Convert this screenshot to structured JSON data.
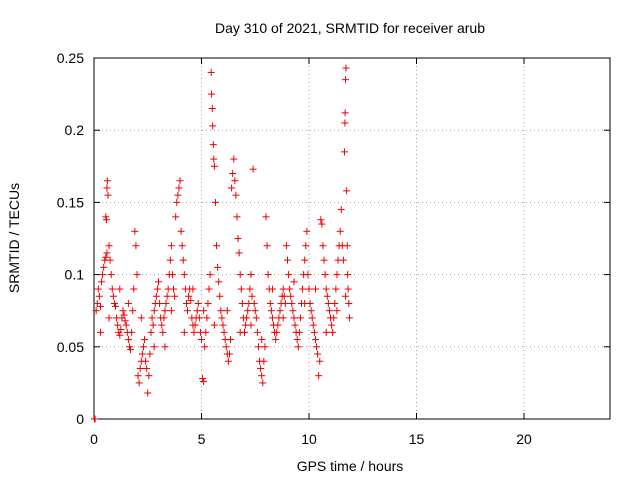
{
  "chart_data": {
    "type": "scatter",
    "title": "Day 310 of 2021, SRMTID for receiver arub",
    "xlabel": "GPS time / hours",
    "ylabel": "SRMTID / TECUs",
    "xlim": [
      0,
      24
    ],
    "ylim": [
      0,
      0.25
    ],
    "xticks": [
      0,
      5,
      10,
      15,
      20
    ],
    "yticks": [
      0,
      0.05,
      0.1,
      0.15,
      0.2,
      0.25
    ],
    "xtick_labels": [
      "0",
      "5",
      "10",
      "15",
      "20"
    ],
    "ytick_labels": [
      "0",
      "0.05",
      "0.1",
      "0.15",
      "0.2",
      "0.25"
    ],
    "grid": true,
    "marker": "+",
    "color": "#ee0000",
    "series": [
      {
        "name": "SRMTID",
        "points": [
          [
            0.02,
            0.0
          ],
          [
            0.05,
            0.0
          ],
          [
            0.1,
            0.075
          ],
          [
            0.15,
            0.08
          ],
          [
            0.2,
            0.09
          ],
          [
            0.25,
            0.085
          ],
          [
            0.3,
            0.078
          ],
          [
            0.35,
            0.095
          ],
          [
            0.4,
            0.1
          ],
          [
            0.45,
            0.105
          ],
          [
            0.5,
            0.11
          ],
          [
            0.55,
            0.112
          ],
          [
            0.6,
            0.115
          ],
          [
            0.6,
            0.16
          ],
          [
            0.62,
            0.165
          ],
          [
            0.65,
            0.155
          ],
          [
            0.55,
            0.14
          ],
          [
            0.58,
            0.138
          ],
          [
            0.7,
            0.12
          ],
          [
            0.75,
            0.11
          ],
          [
            0.8,
            0.1
          ],
          [
            0.85,
            0.09
          ],
          [
            0.9,
            0.085
          ],
          [
            0.95,
            0.08
          ],
          [
            1.0,
            0.078
          ],
          [
            1.05,
            0.07
          ],
          [
            1.1,
            0.065
          ],
          [
            1.15,
            0.06
          ],
          [
            1.2,
            0.058
          ],
          [
            1.25,
            0.062
          ],
          [
            1.3,
            0.07
          ],
          [
            1.35,
            0.075
          ],
          [
            1.4,
            0.072
          ],
          [
            1.45,
            0.068
          ],
          [
            1.5,
            0.065
          ],
          [
            1.55,
            0.06
          ],
          [
            1.6,
            0.055
          ],
          [
            1.65,
            0.05
          ],
          [
            1.7,
            0.048
          ],
          [
            1.75,
            0.06
          ],
          [
            1.8,
            0.075
          ],
          [
            1.85,
            0.09
          ],
          [
            1.9,
            0.13
          ],
          [
            1.95,
            0.12
          ],
          [
            2.0,
            0.1
          ],
          [
            2.05,
            0.03
          ],
          [
            2.1,
            0.025
          ],
          [
            2.15,
            0.035
          ],
          [
            2.2,
            0.04
          ],
          [
            2.25,
            0.045
          ],
          [
            2.3,
            0.05
          ],
          [
            2.35,
            0.055
          ],
          [
            2.4,
            0.04
          ],
          [
            2.45,
            0.035
          ],
          [
            2.5,
            0.018
          ],
          [
            2.55,
            0.03
          ],
          [
            2.6,
            0.045
          ],
          [
            2.65,
            0.06
          ],
          [
            2.7,
            0.07
          ],
          [
            2.75,
            0.065
          ],
          [
            2.8,
            0.075
          ],
          [
            2.85,
            0.08
          ],
          [
            2.9,
            0.085
          ],
          [
            2.95,
            0.09
          ],
          [
            3.0,
            0.095
          ],
          [
            3.05,
            0.08
          ],
          [
            3.1,
            0.07
          ],
          [
            3.15,
            0.065
          ],
          [
            3.2,
            0.06
          ],
          [
            3.25,
            0.07
          ],
          [
            3.3,
            0.075
          ],
          [
            3.35,
            0.08
          ],
          [
            3.4,
            0.085
          ],
          [
            3.45,
            0.09
          ],
          [
            3.5,
            0.1
          ],
          [
            3.55,
            0.11
          ],
          [
            3.6,
            0.12
          ],
          [
            3.65,
            0.1
          ],
          [
            3.7,
            0.09
          ],
          [
            3.75,
            0.085
          ],
          [
            3.8,
            0.14
          ],
          [
            3.85,
            0.15
          ],
          [
            3.9,
            0.155
          ],
          [
            3.95,
            0.16
          ],
          [
            4.0,
            0.165
          ],
          [
            4.05,
            0.13
          ],
          [
            4.1,
            0.12
          ],
          [
            4.15,
            0.11
          ],
          [
            4.2,
            0.1
          ],
          [
            4.25,
            0.09
          ],
          [
            4.3,
            0.08
          ],
          [
            4.35,
            0.075
          ],
          [
            4.4,
            0.085
          ],
          [
            4.45,
            0.09
          ],
          [
            4.5,
            0.082
          ],
          [
            4.55,
            0.07
          ],
          [
            4.6,
            0.065
          ],
          [
            4.65,
            0.06
          ],
          [
            4.7,
            0.065
          ],
          [
            4.75,
            0.07
          ],
          [
            4.8,
            0.075
          ],
          [
            4.85,
            0.08
          ],
          [
            4.9,
            0.07
          ],
          [
            4.95,
            0.06
          ],
          [
            5.0,
            0.055
          ],
          [
            5.05,
            0.028
          ],
          [
            5.1,
            0.026
          ],
          [
            5.15,
            0.05
          ],
          [
            5.2,
            0.06
          ],
          [
            5.25,
            0.07
          ],
          [
            5.3,
            0.08
          ],
          [
            5.35,
            0.09
          ],
          [
            5.4,
            0.1
          ],
          [
            5.45,
            0.24
          ],
          [
            5.47,
            0.225
          ],
          [
            5.5,
            0.215
          ],
          [
            5.52,
            0.203
          ],
          [
            5.55,
            0.19
          ],
          [
            5.57,
            0.18
          ],
          [
            5.6,
            0.175
          ],
          [
            5.65,
            0.15
          ],
          [
            5.7,
            0.12
          ],
          [
            5.75,
            0.105
          ],
          [
            5.8,
            0.095
          ],
          [
            5.85,
            0.085
          ],
          [
            5.9,
            0.075
          ],
          [
            5.95,
            0.07
          ],
          [
            6.0,
            0.065
          ],
          [
            6.05,
            0.06
          ],
          [
            6.1,
            0.055
          ],
          [
            6.15,
            0.05
          ],
          [
            6.2,
            0.045
          ],
          [
            6.25,
            0.04
          ],
          [
            6.3,
            0.045
          ],
          [
            6.35,
            0.055
          ],
          [
            6.4,
            0.16
          ],
          [
            6.45,
            0.17
          ],
          [
            6.5,
            0.18
          ],
          [
            6.55,
            0.165
          ],
          [
            6.6,
            0.155
          ],
          [
            6.65,
            0.14
          ],
          [
            6.7,
            0.125
          ],
          [
            6.75,
            0.115
          ],
          [
            6.8,
            0.1
          ],
          [
            6.85,
            0.09
          ],
          [
            6.9,
            0.08
          ],
          [
            6.95,
            0.07
          ],
          [
            7.0,
            0.06
          ],
          [
            7.05,
            0.065
          ],
          [
            7.1,
            0.07
          ],
          [
            7.15,
            0.075
          ],
          [
            7.2,
            0.08
          ],
          [
            7.25,
            0.09
          ],
          [
            7.3,
            0.1
          ],
          [
            7.35,
            0.085
          ],
          [
            7.4,
            0.173
          ],
          [
            7.45,
            0.08
          ],
          [
            7.5,
            0.075
          ],
          [
            7.55,
            0.07
          ],
          [
            7.6,
            0.06
          ],
          [
            7.65,
            0.05
          ],
          [
            7.7,
            0.04
          ],
          [
            7.75,
            0.035
          ],
          [
            7.8,
            0.03
          ],
          [
            7.85,
            0.025
          ],
          [
            7.9,
            0.04
          ],
          [
            7.95,
            0.05
          ],
          [
            8.0,
            0.14
          ],
          [
            8.05,
            0.12
          ],
          [
            8.1,
            0.1
          ],
          [
            8.15,
            0.09
          ],
          [
            8.2,
            0.08
          ],
          [
            8.25,
            0.075
          ],
          [
            8.3,
            0.07
          ],
          [
            8.35,
            0.065
          ],
          [
            8.4,
            0.06
          ],
          [
            8.45,
            0.055
          ],
          [
            8.5,
            0.06
          ],
          [
            8.55,
            0.065
          ],
          [
            8.6,
            0.07
          ],
          [
            8.65,
            0.075
          ],
          [
            8.7,
            0.08
          ],
          [
            8.75,
            0.085
          ],
          [
            8.8,
            0.09
          ],
          [
            8.85,
            0.085
          ],
          [
            8.9,
            0.08
          ],
          [
            8.95,
            0.12
          ],
          [
            9.0,
            0.11
          ],
          [
            9.05,
            0.1
          ],
          [
            9.1,
            0.09
          ],
          [
            9.15,
            0.085
          ],
          [
            9.2,
            0.08
          ],
          [
            9.25,
            0.075
          ],
          [
            9.3,
            0.07
          ],
          [
            9.35,
            0.065
          ],
          [
            9.4,
            0.06
          ],
          [
            9.45,
            0.055
          ],
          [
            9.5,
            0.05
          ],
          [
            9.55,
            0.06
          ],
          [
            9.6,
            0.07
          ],
          [
            9.65,
            0.08
          ],
          [
            9.7,
            0.09
          ],
          [
            9.75,
            0.1
          ],
          [
            9.8,
            0.11
          ],
          [
            9.85,
            0.12
          ],
          [
            9.9,
            0.13
          ],
          [
            9.95,
            0.1
          ],
          [
            10.0,
            0.09
          ],
          [
            10.05,
            0.08
          ],
          [
            10.1,
            0.075
          ],
          [
            10.15,
            0.07
          ],
          [
            10.2,
            0.065
          ],
          [
            10.25,
            0.06
          ],
          [
            10.3,
            0.055
          ],
          [
            10.35,
            0.05
          ],
          [
            10.4,
            0.045
          ],
          [
            10.45,
            0.03
          ],
          [
            10.5,
            0.04
          ],
          [
            10.55,
            0.138
          ],
          [
            10.6,
            0.135
          ],
          [
            10.65,
            0.12
          ],
          [
            10.7,
            0.11
          ],
          [
            10.75,
            0.1
          ],
          [
            10.8,
            0.09
          ],
          [
            10.85,
            0.085
          ],
          [
            10.9,
            0.08
          ],
          [
            10.95,
            0.075
          ],
          [
            11.0,
            0.07
          ],
          [
            11.05,
            0.065
          ],
          [
            11.1,
            0.06
          ],
          [
            11.15,
            0.07
          ],
          [
            11.2,
            0.08
          ],
          [
            11.25,
            0.09
          ],
          [
            11.3,
            0.1
          ],
          [
            11.35,
            0.11
          ],
          [
            11.4,
            0.12
          ],
          [
            11.45,
            0.13
          ],
          [
            11.5,
            0.145
          ],
          [
            11.55,
            0.12
          ],
          [
            11.6,
            0.11
          ],
          [
            11.65,
            0.185
          ],
          [
            11.67,
            0.205
          ],
          [
            11.68,
            0.212
          ],
          [
            11.7,
            0.235
          ],
          [
            11.72,
            0.243
          ],
          [
            11.75,
            0.158
          ],
          [
            11.78,
            0.12
          ],
          [
            11.8,
            0.1
          ],
          [
            11.82,
            0.09
          ],
          [
            11.85,
            0.08
          ],
          [
            11.88,
            0.07
          ],
          [
            0.3,
            0.06
          ],
          [
            0.7,
            0.07
          ],
          [
            1.2,
            0.09
          ],
          [
            1.6,
            0.08
          ],
          [
            2.2,
            0.07
          ],
          [
            2.8,
            0.05
          ],
          [
            3.3,
            0.05
          ],
          [
            3.6,
            0.075
          ],
          [
            4.2,
            0.06
          ],
          [
            4.6,
            0.09
          ],
          [
            5.1,
            0.075
          ],
          [
            5.6,
            0.065
          ],
          [
            6.2,
            0.075
          ],
          [
            6.8,
            0.06
          ],
          [
            7.3,
            0.065
          ],
          [
            7.8,
            0.055
          ],
          [
            8.3,
            0.09
          ],
          [
            8.8,
            0.07
          ],
          [
            9.3,
            0.095
          ],
          [
            9.8,
            0.08
          ],
          [
            10.3,
            0.09
          ],
          [
            10.8,
            0.06
          ],
          [
            11.3,
            0.075
          ],
          [
            11.7,
            0.085
          ]
        ]
      }
    ]
  }
}
